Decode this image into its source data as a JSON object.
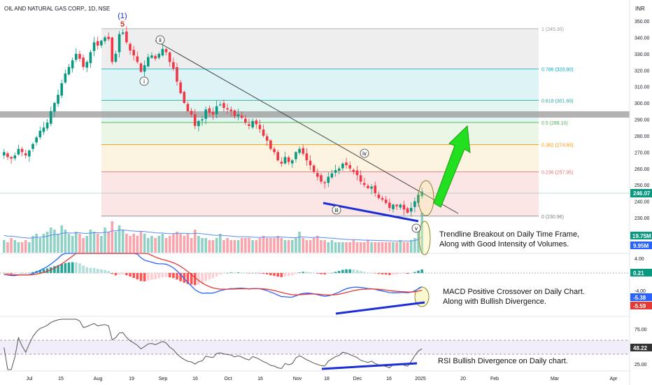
{
  "header": {
    "title": "OIL AND NATURAL GAS CORP., 1D, NSE",
    "currency": "INR"
  },
  "colors": {
    "up": "#089981",
    "down": "#f23645",
    "trend_blue": "#1c2fd6",
    "arrow_green": "#22e01f",
    "macd": "#2962ff",
    "signal": "#e53935",
    "rsi": "#555555",
    "fib_0": "#787b86",
    "fib_236": "#e57373",
    "fib_382": "#ff9800",
    "fib_5": "#4caf50",
    "fib_618": "#26a69a",
    "fib_786": "#00acc1"
  },
  "chart_data": [
    {
      "type": "candlestick",
      "name": "price",
      "ylim": [
        224,
        356
      ],
      "y_ticks": [
        "350.00",
        "340.00",
        "330.00",
        "320.00",
        "310.00",
        "300.00",
        "290.00",
        "280.00",
        "270.00",
        "260.00",
        "250.00",
        "240.00",
        "230.00"
      ],
      "x_ticks": [
        "Jul",
        "15",
        "Aug",
        "19",
        "Sep",
        "16",
        "Oct",
        "16",
        "Nov",
        "18",
        "Dec",
        "16",
        "2025",
        "20",
        "Feb",
        "Mar",
        "Apr"
      ],
      "last_price": "246.07",
      "closes": [
        270,
        267,
        266,
        268,
        272,
        270,
        268,
        271,
        275,
        279,
        283,
        285,
        288,
        295,
        300,
        305,
        312,
        318,
        322,
        326,
        330,
        327,
        322,
        325,
        331,
        337,
        335,
        338,
        340,
        339,
        325,
        330,
        342,
        343,
        337,
        332,
        329,
        325,
        319,
        323,
        328,
        329,
        327,
        330,
        333,
        331,
        325,
        321,
        313,
        306,
        300,
        295,
        293,
        286,
        289,
        290,
        296,
        294,
        293,
        298,
        299,
        297,
        296,
        295,
        292,
        293,
        291,
        288,
        286,
        289,
        287,
        284,
        280,
        277,
        272,
        270,
        265,
        263,
        267,
        264,
        265,
        270,
        272,
        269,
        265,
        262,
        258,
        255,
        252,
        251,
        255,
        257,
        259,
        260,
        263,
        262,
        260,
        258,
        256,
        252,
        250,
        248,
        249,
        245,
        242,
        241,
        239,
        236,
        238,
        237,
        238,
        235,
        233,
        236,
        240,
        244,
        246
      ],
      "fibonacci": [
        {
          "level": "1 (345.30)",
          "price": 345.3
        },
        {
          "level": "0.786 (320.80)",
          "price": 320.8
        },
        {
          "level": "0.618 (301.60)",
          "price": 301.6
        },
        {
          "level": "0.5 (288.10)",
          "price": 288.1
        },
        {
          "level": "0.382 (274.65)",
          "price": 274.65
        },
        {
          "level": "0.236 (257.95)",
          "price": 257.95
        },
        {
          "level": "0 (230.96)",
          "price": 230.96
        }
      ],
      "wave_labels": [
        "(1)",
        "5",
        "ii",
        "i",
        "iii",
        "iv",
        "v"
      ],
      "annotation": "Trendline Breakout on Daily Time Frame,\nAlong with Good Intensity of Volumes."
    },
    {
      "type": "bar",
      "name": "volume",
      "volume_label": "19.75M",
      "volume_ma_label": "9.95M",
      "values": [
        0.6,
        0.5,
        0.7,
        0.6,
        0.5,
        0.5,
        0.6,
        0.5,
        0.8,
        0.9,
        0.7,
        0.9,
        1.0,
        1.2,
        1.1,
        0.9,
        1.3,
        1.1,
        0.9,
        0.8,
        1.0,
        0.9,
        0.7,
        0.8,
        1.1,
        1.0,
        0.9,
        0.8,
        1.2,
        1.0,
        1.5,
        1.0,
        1.3,
        1.1,
        0.9,
        0.8,
        0.9,
        0.8,
        1.0,
        0.9,
        0.7,
        0.8,
        0.7,
        0.8,
        0.9,
        0.7,
        0.8,
        0.9,
        1.0,
        0.9,
        0.8,
        0.9,
        0.7,
        1.1,
        0.8,
        0.7,
        0.7,
        0.6,
        0.6,
        0.7,
        0.9,
        0.6,
        0.7,
        0.6,
        0.6,
        0.6,
        0.7,
        0.7,
        0.7,
        0.6,
        0.6,
        0.7,
        0.8,
        0.7,
        0.7,
        0.7,
        0.8,
        0.7,
        0.6,
        0.6,
        0.6,
        0.7,
        1.0,
        0.7,
        0.6,
        0.6,
        0.7,
        0.8,
        0.6,
        0.6,
        0.5,
        0.6,
        0.5,
        0.5,
        0.5,
        0.5,
        0.5,
        0.6,
        0.5,
        0.5,
        0.5,
        0.6,
        0.5,
        0.5,
        0.5,
        0.5,
        0.5,
        0.5,
        0.5,
        0.5,
        0.6,
        0.5,
        0.5,
        0.6,
        0.7,
        1.0,
        1.9
      ]
    },
    {
      "type": "bar+line",
      "name": "MACD",
      "y_ticks": [
        "4.00",
        "-4.00"
      ],
      "labels": [
        "0.21",
        "-5.38",
        "-5.59"
      ],
      "annotation": "MACD Positive Crossover on Daily Chart.\nAlong with Bullish Divergence."
    },
    {
      "type": "line",
      "name": "RSI",
      "y_ticks": [
        "75.00",
        "25.00"
      ],
      "label": "48.22",
      "annotation": "RSI Bullish Divergence on Daily chart."
    }
  ]
}
